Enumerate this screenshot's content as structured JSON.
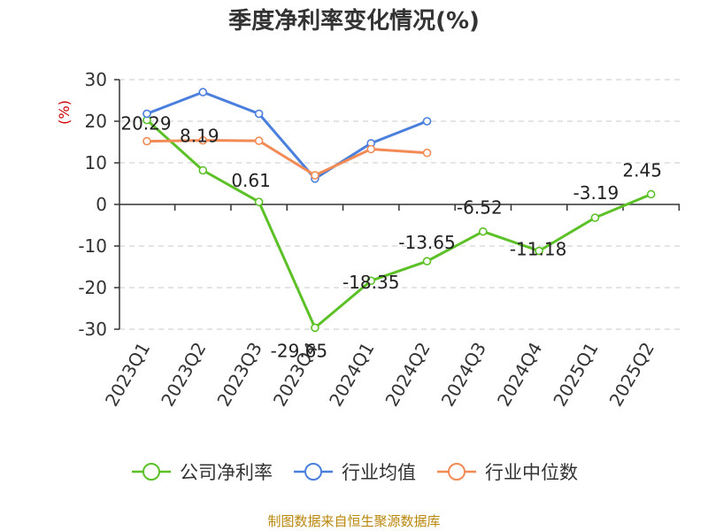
{
  "title": "季度净利率变化情况(%)",
  "source": "制图数据来自恒生聚源数据库",
  "colors": {
    "company": "#5cc027",
    "industry_avg": "#4a7fdd",
    "industry_median": "#f28a55",
    "axis": "#333333",
    "grid": "#c8c8c8",
    "ylabel": "#cc0000"
  },
  "chart_data": {
    "type": "line",
    "title": "季度净利率变化情况(%)",
    "xlabel": "",
    "ylabel": "(%)",
    "ylim": [
      -30,
      30
    ],
    "yticks": [
      30,
      20,
      10,
      0,
      -10,
      -20,
      -30
    ],
    "grid": true,
    "legend": "bottom",
    "categories": [
      "2023Q1",
      "2023Q2",
      "2023Q3",
      "2023Q4",
      "2024Q1",
      "2024Q2",
      "2024Q3",
      "2024Q4",
      "2025Q1",
      "2025Q2"
    ],
    "series": [
      {
        "name": "公司净利率",
        "color": "#5cc027",
        "values": [
          20.29,
          8.19,
          0.61,
          -29.65,
          -18.35,
          -13.65,
          -6.52,
          -11.18,
          -3.19,
          2.45
        ],
        "labels": [
          "20.29",
          "8.19",
          "0.61",
          "-29.65",
          "-18.35",
          "-13.65",
          "-6.52",
          "-11.18",
          "-3.19",
          "2.45"
        ]
      },
      {
        "name": "行业均值",
        "color": "#4a7fdd",
        "values": [
          21.8,
          27.0,
          21.8,
          6.2,
          14.7,
          20.0,
          null,
          null,
          null,
          null
        ]
      },
      {
        "name": "行业中位数",
        "color": "#f28a55",
        "values": [
          15.2,
          15.4,
          15.3,
          7.0,
          13.3,
          12.4,
          null,
          null,
          null,
          null
        ]
      }
    ]
  }
}
